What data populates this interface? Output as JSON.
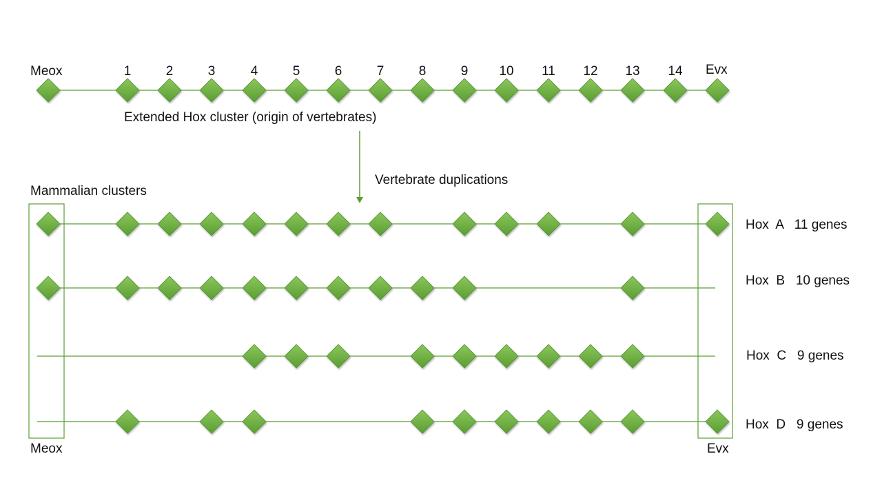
{
  "top": {
    "left_label": "Meox",
    "right_label": "Evx",
    "numbers": [
      "1",
      "2",
      "3",
      "4",
      "5",
      "6",
      "7",
      "8",
      "9",
      "10",
      "11",
      "12",
      "13",
      "14"
    ],
    "caption": "Extended Hox cluster (origin of vertebrates)"
  },
  "arrow_label": "Vertebrate duplications",
  "clusters_title": "Mammalian clusters",
  "bottom_left_label": "Meox",
  "bottom_right_label": "Evx",
  "rows": [
    {
      "label": "Hox  A   11 genes",
      "meox": true,
      "evx": true,
      "genes": [
        1,
        2,
        3,
        4,
        5,
        6,
        7,
        9,
        10,
        11,
        13
      ]
    },
    {
      "label": "Hox  B   10 genes",
      "meox": true,
      "evx": false,
      "genes": [
        1,
        2,
        3,
        4,
        5,
        6,
        7,
        8,
        9,
        13
      ]
    },
    {
      "label": "Hox  C   9 genes",
      "meox": false,
      "evx": false,
      "genes": [
        4,
        5,
        6,
        8,
        9,
        10,
        11,
        12,
        13
      ]
    },
    {
      "label": "Hox  D   9 genes",
      "meox": false,
      "evx": true,
      "genes": [
        1,
        3,
        4,
        8,
        9,
        10,
        11,
        12,
        13
      ]
    }
  ],
  "colors": {
    "gene": "#6aaf3d",
    "gene_light": "#8cc65c",
    "gene_dark": "#4e8f2a",
    "line": "#5a9e32",
    "arrow": "#5a9e32"
  }
}
